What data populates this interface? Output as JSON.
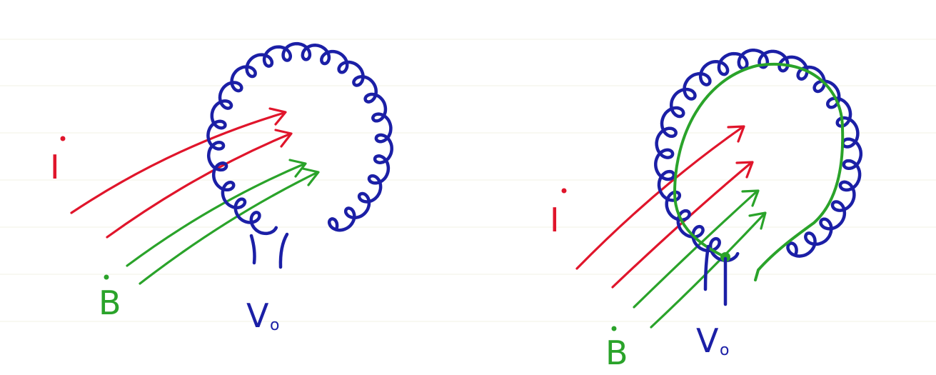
{
  "colors": {
    "current": "#e0152b",
    "field": "#2aa32a",
    "coil": "#1b1fa6",
    "ruling": "#f1f1e6"
  },
  "labels": {
    "left_current": "I",
    "left_field": "B",
    "left_voltage": "V",
    "left_voltage_sub": "o",
    "right_current": "I",
    "right_field": "B",
    "right_voltage": "V",
    "right_voltage_sub": "o"
  }
}
